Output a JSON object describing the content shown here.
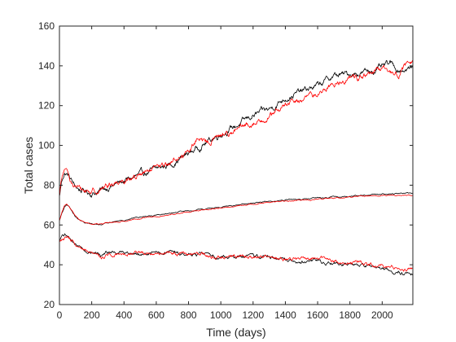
{
  "chart_data": {
    "type": "line",
    "title": "",
    "xlabel": "Time (days)",
    "ylabel": "Total cases",
    "xlim": [
      0,
      2190
    ],
    "ylim": [
      20,
      160
    ],
    "xticks": [
      0,
      200,
      400,
      600,
      800,
      1000,
      1200,
      1400,
      1600,
      1800,
      2000
    ],
    "yticks": [
      20,
      40,
      60,
      80,
      100,
      120,
      140,
      160
    ],
    "grid": false,
    "legend": "none",
    "series": [
      {
        "group": "upper",
        "color": "#000000",
        "noise": 1.6,
        "x": [
          0,
          10,
          20,
          30,
          40,
          55,
          70,
          90,
          120,
          150,
          200,
          250,
          300,
          400,
          500,
          600,
          700,
          800,
          900,
          1000,
          1100,
          1200,
          1300,
          1400,
          1500,
          1600,
          1700,
          1800,
          1900,
          2000,
          2050,
          2100,
          2190
        ],
        "y": [
          74,
          80,
          84,
          86,
          86,
          85,
          83,
          80,
          78,
          77,
          76,
          77,
          79,
          82,
          85,
          88,
          91,
          96,
          101,
          106,
          110,
          115,
          118,
          124,
          127,
          130,
          135,
          136,
          137,
          139,
          141,
          138,
          139
        ]
      },
      {
        "group": "upper",
        "color": "#ff0000",
        "noise": 1.6,
        "x": [
          0,
          10,
          20,
          30,
          40,
          55,
          70,
          90,
          120,
          150,
          200,
          250,
          300,
          400,
          500,
          600,
          700,
          800,
          850,
          900,
          1000,
          1100,
          1200,
          1300,
          1400,
          1500,
          1600,
          1700,
          1800,
          1900,
          2000,
          2100,
          2150,
          2190
        ],
        "y": [
          74,
          81,
          85,
          87,
          86,
          85,
          83,
          80,
          78,
          77,
          77,
          78,
          80,
          83,
          85,
          88,
          92,
          97,
          103,
          101,
          105,
          108,
          111,
          115,
          120,
          123,
          126,
          131,
          134,
          135,
          138,
          136,
          140,
          142
        ]
      },
      {
        "group": "middle",
        "color": "#000000",
        "noise": 0.3,
        "x": [
          0,
          15,
          30,
          45,
          60,
          80,
          100,
          130,
          160,
          200,
          250,
          300,
          400,
          500,
          600,
          700,
          800,
          900,
          1000,
          1100,
          1200,
          1300,
          1400,
          1500,
          1600,
          1700,
          1800,
          1900,
          2000,
          2100,
          2190
        ],
        "y": [
          62,
          66,
          69,
          70,
          69,
          66.5,
          64,
          62,
          61,
          60.5,
          60.5,
          61,
          62.5,
          64,
          65,
          66,
          67,
          68,
          69,
          70,
          71,
          72,
          72.5,
          73,
          73.5,
          74,
          74.5,
          75,
          75.5,
          76,
          76
        ]
      },
      {
        "group": "middle",
        "color": "#ff0000",
        "noise": 0.3,
        "x": [
          0,
          15,
          30,
          45,
          60,
          80,
          100,
          130,
          160,
          200,
          250,
          300,
          400,
          500,
          600,
          700,
          800,
          900,
          1000,
          1100,
          1200,
          1300,
          1400,
          1500,
          1600,
          1700,
          1800,
          1900,
          2000,
          2100,
          2190
        ],
        "y": [
          62,
          66.5,
          69.5,
          70.5,
          69.5,
          67,
          64.5,
          62.5,
          61.5,
          60.5,
          60.5,
          61,
          62,
          63.5,
          64.5,
          65.5,
          66.5,
          67.5,
          68.5,
          69.5,
          70.5,
          71.5,
          72,
          72.5,
          73,
          73.5,
          74,
          74.5,
          75,
          75,
          75
        ]
      },
      {
        "group": "lower",
        "color": "#000000",
        "noise": 1.0,
        "x": [
          0,
          20,
          40,
          60,
          80,
          100,
          140,
          200,
          260,
          300,
          400,
          500,
          600,
          700,
          800,
          900,
          1000,
          1100,
          1200,
          1300,
          1400,
          1500,
          1600,
          1700,
          1800,
          1900,
          2000,
          2100,
          2190
        ],
        "y": [
          52,
          54,
          55,
          54,
          52,
          50,
          48,
          46,
          45,
          46,
          46,
          46,
          46,
          46,
          45,
          45,
          44,
          44,
          44,
          44,
          43,
          42,
          42,
          41,
          40,
          39,
          38,
          36,
          35
        ]
      },
      {
        "group": "lower",
        "color": "#ff0000",
        "noise": 1.0,
        "x": [
          0,
          20,
          40,
          60,
          80,
          100,
          140,
          200,
          260,
          300,
          400,
          500,
          600,
          700,
          800,
          900,
          1000,
          1100,
          1200,
          1300,
          1400,
          1500,
          1600,
          1700,
          1800,
          1900,
          2000,
          2100,
          2190
        ],
        "y": [
          52,
          53,
          53,
          53,
          52,
          49,
          47,
          45,
          44,
          45,
          46,
          46,
          46,
          46,
          45,
          45,
          44,
          44,
          44,
          44,
          43,
          43,
          43,
          42,
          41,
          40,
          40,
          39,
          37
        ]
      }
    ]
  }
}
